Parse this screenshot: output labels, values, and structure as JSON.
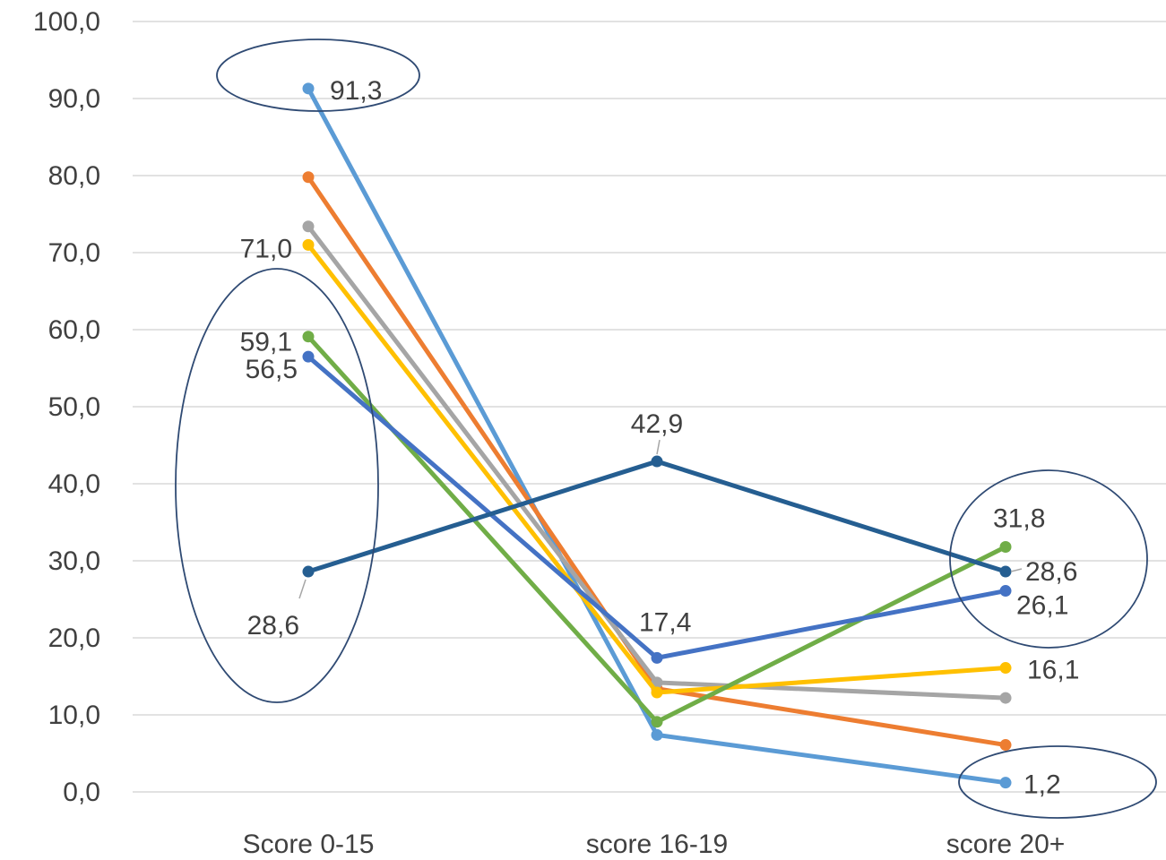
{
  "chart_data": {
    "type": "line",
    "title": "",
    "xlabel": "",
    "ylabel": "",
    "categories": [
      "Score 0-15",
      "score 16-19",
      "score 20+"
    ],
    "ylim": [
      0,
      100
    ],
    "y_ticks": [
      "0,0",
      "10,0",
      "20,0",
      "30,0",
      "40,0",
      "50,0",
      "60,0",
      "70,0",
      "80,0",
      "90,0",
      "100,0"
    ],
    "grid": true,
    "legend": "none",
    "series": [
      {
        "values": [
          91.3,
          7.4,
          1.2
        ],
        "color": "#5B9BD5",
        "labels": [
          "91,3",
          "",
          "1,2"
        ]
      },
      {
        "values": [
          79.8,
          13.4,
          6.1
        ],
        "color": "#ED7D31",
        "labels": [
          "",
          "",
          ""
        ]
      },
      {
        "values": [
          73.4,
          14.2,
          12.2
        ],
        "color": "#A5A5A5",
        "labels": [
          "",
          "",
          ""
        ]
      },
      {
        "values": [
          71.0,
          12.9,
          16.1
        ],
        "color": "#FFC000",
        "labels": [
          "71,0",
          "",
          "16,1"
        ]
      },
      {
        "values": [
          59.1,
          9.1,
          31.8
        ],
        "color": "#70AD47",
        "labels": [
          "59,1",
          "",
          "31,8"
        ]
      },
      {
        "values": [
          56.5,
          17.4,
          26.1
        ],
        "color": "#4472C4",
        "labels": [
          "56,5",
          "17,4",
          "26,1"
        ]
      },
      {
        "values": [
          28.6,
          42.9,
          28.6
        ],
        "color": "#255E91",
        "labels": [
          "28,6",
          "42,9",
          "28,6"
        ]
      }
    ],
    "annotations": [
      {
        "type": "ellipse",
        "around": "91,3"
      },
      {
        "type": "ellipse",
        "around": "Score 0-15 lower values"
      },
      {
        "type": "ellipse",
        "around": "score 20+ upper values"
      },
      {
        "type": "ellipse",
        "around": "1,2"
      }
    ]
  }
}
